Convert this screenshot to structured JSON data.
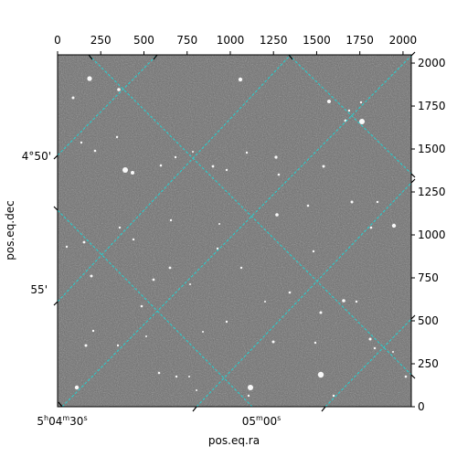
{
  "chart_data": {
    "type": "image",
    "xlabel": "pos.eq.ra",
    "ylabel": "pos.eq.dec",
    "pixel_axes": {
      "x_range": [
        0,
        2048
      ],
      "y_range": [
        0,
        2048
      ],
      "top_ticks": [
        "0",
        "250",
        "500",
        "750",
        "1000",
        "1250",
        "1500",
        "1750",
        "2000"
      ],
      "top_tick_values": [
        0,
        250,
        500,
        750,
        1000,
        1250,
        1500,
        1750,
        2000
      ],
      "right_ticks": [
        "0",
        "250",
        "500",
        "750",
        "1000",
        "1250",
        "1500",
        "1750",
        "2000"
      ],
      "right_tick_values": [
        0,
        250,
        500,
        750,
        1000,
        1250,
        1500,
        1750,
        2000
      ]
    },
    "world_axes": {
      "ra_ticks": [
        {
          "label_main": "5",
          "sup1": "h",
          "mid": "04",
          "sup2": "m",
          "tail": "30",
          "sup3": "s"
        },
        {
          "label_main": "05",
          "sup1": "m",
          "mid": "00",
          "sup2": "s",
          "tail": "",
          "sup3": ""
        }
      ],
      "dec_ticks": [
        "4°50'",
        "55'"
      ]
    },
    "grid": {
      "enabled": true,
      "color": "#22d3d3",
      "style": "dashed"
    },
    "image": {
      "colormap": "gray",
      "background": "#6b6b6b"
    }
  }
}
